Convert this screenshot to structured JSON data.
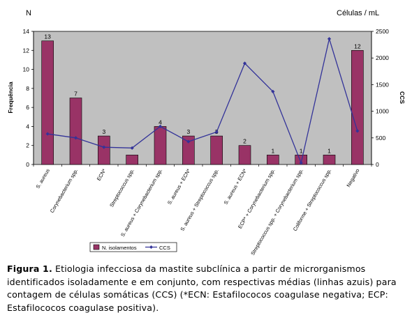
{
  "chart_data": {
    "type": "bar",
    "left_axis_label_top": "N",
    "right_axis_label_top": "Células / mL",
    "ylabel": "Frequência",
    "y2label": "CCS",
    "ylim": [
      0,
      14
    ],
    "y2lim": [
      0,
      2500
    ],
    "yticks": [
      0,
      2,
      4,
      6,
      8,
      10,
      12,
      14
    ],
    "y2ticks": [
      0,
      500,
      1000,
      1500,
      2000,
      2500
    ],
    "grid": false,
    "legend_position": "bottom",
    "categories": [
      "S. aureus",
      "Corynebacterium spp.",
      "ECN*",
      "Streptococcus spp.",
      "S. aureus + Corynebacterium spp.",
      "S. aureus + ECN*",
      "S. aureus + Streptococcus spp.",
      "S. aureus + ECN*",
      "ECP* + Corynebacterium spp.",
      "Streptococcus spp. + Corynebacterium spp.",
      "Coliforme + Streptococcus spp.",
      "Negativo"
    ],
    "series": [
      {
        "name": "N. isolamentos",
        "type": "bar",
        "axis": "left",
        "color": "#993366",
        "values": [
          13,
          7,
          3,
          1,
          4,
          3,
          3,
          2,
          1,
          1,
          1,
          12
        ]
      },
      {
        "name": "CCS",
        "type": "line",
        "axis": "right",
        "color": "#333399",
        "values": [
          575,
          500,
          325,
          310,
          715,
          430,
          610,
          1900,
          1370,
          30,
          2360,
          630
        ]
      }
    ],
    "bar_labels": [
      "13",
      "7",
      "3",
      "",
      "4",
      "3",
      "3",
      "2",
      "1",
      "1",
      "1",
      "12"
    ]
  },
  "caption": {
    "label": "Figura 1.",
    "text": " Etiologia infecciosa da mastite subclínica a partir de microrganismos identificados isoladamente e em conjunto, com respectivas médias (linhas azuis) para contagem de células somáticas (CCS) (*ECN: Estafilococos coagulase negativa; ECP: Estafilococos coagulase positiva)."
  }
}
